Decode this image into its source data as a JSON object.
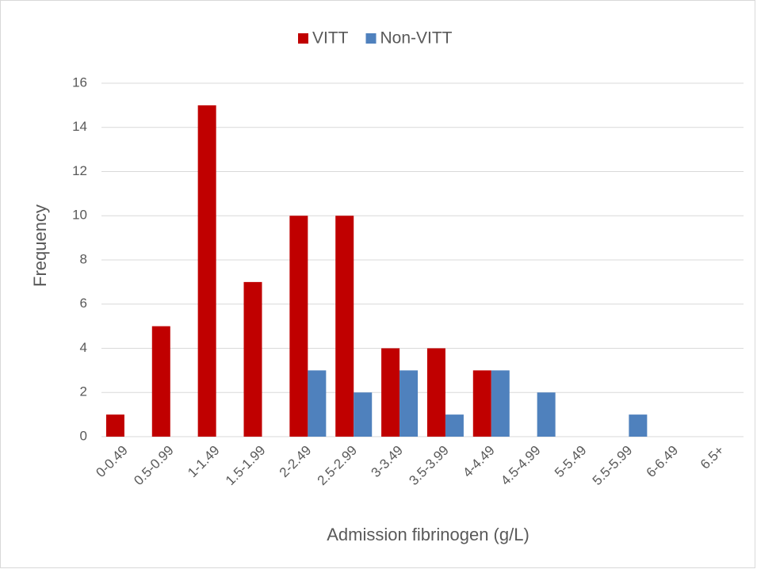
{
  "chart_data": {
    "type": "bar",
    "x_label": "Admission fibrinogen (g/L)",
    "y_label": "Frequency",
    "categories": [
      "0-0.49",
      "0.5-0.99",
      "1-1.49",
      "1.5-1.99",
      "2-2.49",
      "2.5-2.99",
      "3-3.49",
      "3.5-3.99",
      "4-4.49",
      "4.5-4.99",
      "5-5.49",
      "5.5-5.99",
      "6-6.49",
      "6.5+"
    ],
    "series": [
      {
        "name": "VITT",
        "color": "#c00000",
        "values": [
          1,
          5,
          15,
          7,
          10,
          10,
          4,
          4,
          3,
          0,
          0,
          0,
          0,
          0
        ]
      },
      {
        "name": "Non-VITT",
        "color": "#4f81bd",
        "values": [
          0,
          0,
          0,
          0,
          3,
          2,
          3,
          1,
          3,
          2,
          0,
          1,
          0,
          0
        ]
      }
    ],
    "ylim": [
      0,
      16
    ],
    "yticks": [
      0,
      2,
      4,
      6,
      8,
      10,
      12,
      14,
      16
    ],
    "grid": true,
    "legend": "top"
  }
}
